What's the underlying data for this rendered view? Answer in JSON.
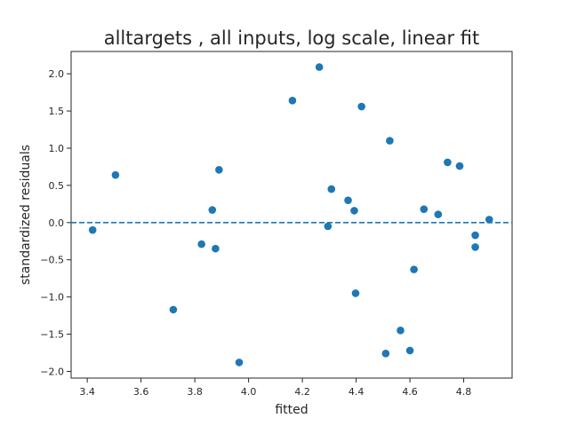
{
  "chart_data": {
    "type": "scatter",
    "title": "alltargets , all inputs, log scale, linear fit",
    "xlabel": "fitted",
    "ylabel": "standardized residuals",
    "xlim": [
      3.34,
      4.98
    ],
    "ylim": [
      -2.09,
      2.3
    ],
    "xticks": [
      3.4,
      3.6,
      3.8,
      4.0,
      4.2,
      4.4,
      4.6,
      4.8
    ],
    "xtick_labels": [
      "3.4",
      "3.6",
      "3.8",
      "4.0",
      "4.2",
      "4.4",
      "4.6",
      "4.8"
    ],
    "yticks": [
      -2.0,
      -1.5,
      -1.0,
      -0.5,
      0.0,
      0.5,
      1.0,
      1.5,
      2.0
    ],
    "ytick_labels": [
      "−2.0",
      "−1.5",
      "−1.0",
      "−0.5",
      "0.0",
      "0.5",
      "1.0",
      "1.5",
      "2.0"
    ],
    "grid": false,
    "reference_line": {
      "y": 0.0,
      "style": "dashed",
      "color": "#1f77b4"
    },
    "marker_color": "#1f77b4",
    "points": [
      {
        "x": 3.42,
        "y": -0.1
      },
      {
        "x": 3.505,
        "y": 0.64
      },
      {
        "x": 3.72,
        "y": -1.17
      },
      {
        "x": 3.825,
        "y": -0.29
      },
      {
        "x": 3.865,
        "y": 0.17
      },
      {
        "x": 3.877,
        "y": -0.35
      },
      {
        "x": 3.89,
        "y": 0.71
      },
      {
        "x": 3.965,
        "y": -1.88
      },
      {
        "x": 4.163,
        "y": 1.64
      },
      {
        "x": 4.263,
        "y": 2.09
      },
      {
        "x": 4.295,
        "y": -0.05
      },
      {
        "x": 4.308,
        "y": 0.45
      },
      {
        "x": 4.37,
        "y": 0.3
      },
      {
        "x": 4.393,
        "y": 0.16
      },
      {
        "x": 4.398,
        "y": -0.95
      },
      {
        "x": 4.42,
        "y": 1.56
      },
      {
        "x": 4.51,
        "y": -1.76
      },
      {
        "x": 4.525,
        "y": 1.1
      },
      {
        "x": 4.565,
        "y": -1.45
      },
      {
        "x": 4.6,
        "y": -1.72
      },
      {
        "x": 4.615,
        "y": -0.63
      },
      {
        "x": 4.652,
        "y": 0.18
      },
      {
        "x": 4.705,
        "y": 0.11
      },
      {
        "x": 4.74,
        "y": 0.81
      },
      {
        "x": 4.785,
        "y": 0.76
      },
      {
        "x": 4.843,
        "y": -0.17
      },
      {
        "x": 4.843,
        "y": -0.33
      },
      {
        "x": 4.895,
        "y": 0.04
      }
    ]
  }
}
